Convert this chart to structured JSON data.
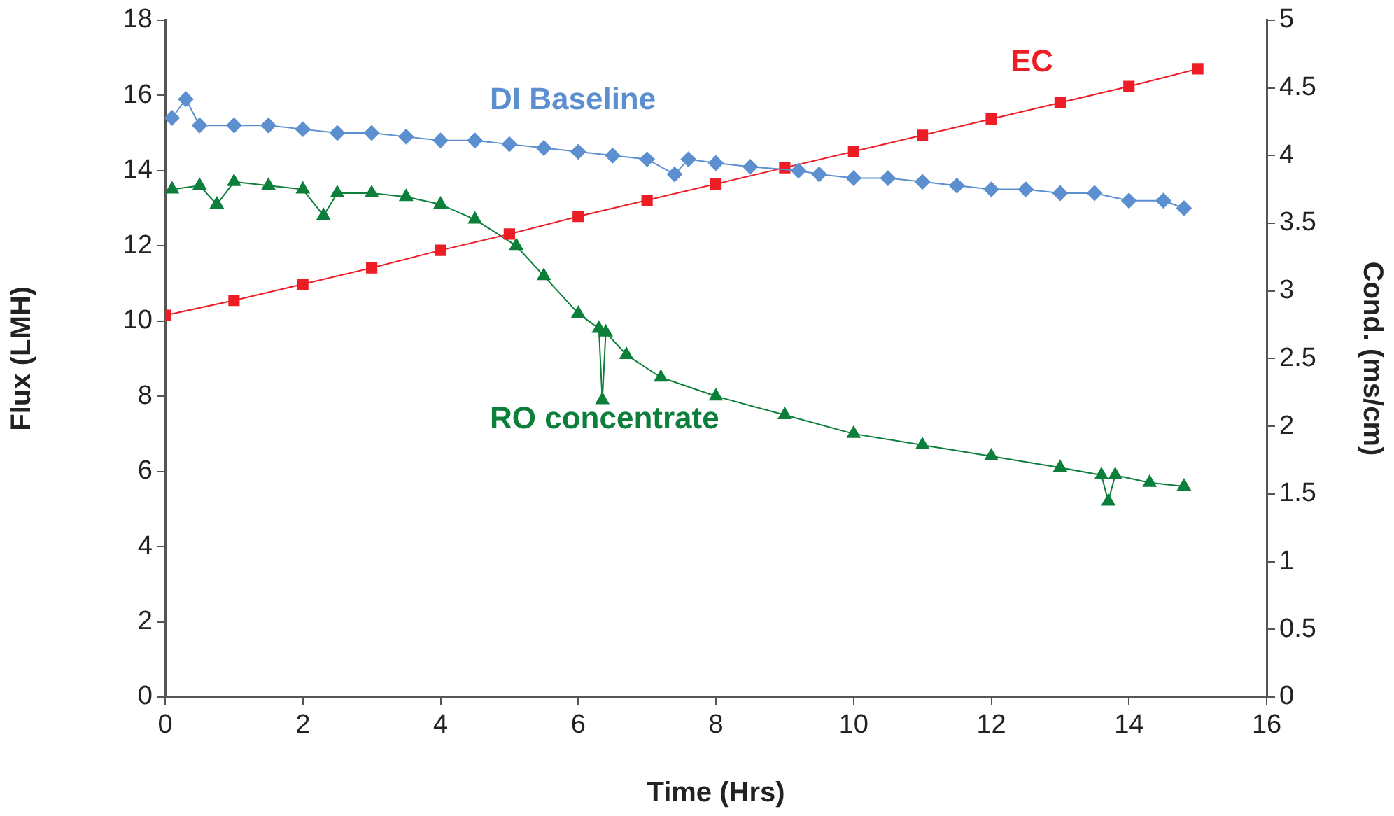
{
  "chart_data": {
    "type": "line",
    "xlabel": "Time (Hrs)",
    "ylabel": "Flux (LMH)",
    "y2label": "Cond. (ms/cm)",
    "xlim": [
      0,
      16
    ],
    "xticks": [
      0,
      2,
      4,
      6,
      8,
      10,
      12,
      14,
      16
    ],
    "ylim": [
      0,
      18
    ],
    "yticks": [
      0,
      2,
      4,
      6,
      8,
      10,
      12,
      14,
      16,
      18
    ],
    "y2lim": [
      0,
      5
    ],
    "y2ticks": [
      0,
      0.5,
      1,
      1.5,
      2,
      2.5,
      3,
      3.5,
      4,
      4.5,
      5
    ],
    "series": [
      {
        "name": "DI Baseline",
        "color": "#5b8fd0",
        "marker": "diamond",
        "x": [
          0.1,
          0.3,
          0.5,
          1,
          1.5,
          2,
          2.5,
          3,
          3.5,
          4,
          4.5,
          5,
          5.5,
          6,
          6.5,
          7,
          7.4,
          7.6,
          8,
          8.5,
          9.2,
          9.5,
          10,
          10.5,
          11,
          11.5,
          12,
          12.5,
          13,
          13.5,
          14,
          14.5,
          14.8
        ],
        "values": [
          15.4,
          15.9,
          15.2,
          15.2,
          15.2,
          15.1,
          15.0,
          15.0,
          14.9,
          14.8,
          14.8,
          14.7,
          14.6,
          14.5,
          14.4,
          14.3,
          13.9,
          14.3,
          14.2,
          14.1,
          14.0,
          13.9,
          13.8,
          13.8,
          13.7,
          13.6,
          13.5,
          13.5,
          13.4,
          13.4,
          13.2,
          13.2,
          13.0
        ]
      },
      {
        "name": "EC",
        "color": "#ee1c25",
        "marker": "square",
        "axis": "y2",
        "x": [
          0,
          1,
          2,
          3,
          4,
          5,
          6,
          7,
          8,
          9,
          10,
          11,
          12,
          13,
          14,
          15
        ],
        "values": [
          2.82,
          2.93,
          3.05,
          3.17,
          3.3,
          3.42,
          3.55,
          3.67,
          3.79,
          3.91,
          4.03,
          4.15,
          4.27,
          4.39,
          4.51,
          4.64
        ]
      },
      {
        "name": "RO concentrate",
        "color": "#0c7f3a",
        "marker": "triangle",
        "x": [
          0.1,
          0.5,
          0.75,
          1,
          1.5,
          2,
          2.3,
          2.5,
          3,
          3.5,
          4,
          4.5,
          5.1,
          5.5,
          6,
          6.3,
          6.35,
          6.4,
          6.7,
          7.2,
          8,
          9,
          10,
          11,
          12,
          13,
          13.6,
          13.7,
          13.8,
          14.3,
          14.8
        ],
        "values": [
          13.5,
          13.6,
          13.1,
          13.7,
          13.6,
          13.5,
          12.8,
          13.4,
          13.4,
          13.3,
          13.1,
          12.7,
          12.0,
          11.2,
          10.2,
          9.8,
          7.9,
          9.7,
          9.1,
          8.5,
          8.0,
          7.5,
          7.0,
          6.7,
          6.4,
          6.1,
          5.9,
          5.2,
          5.9,
          5.7,
          5.6
        ]
      }
    ]
  }
}
